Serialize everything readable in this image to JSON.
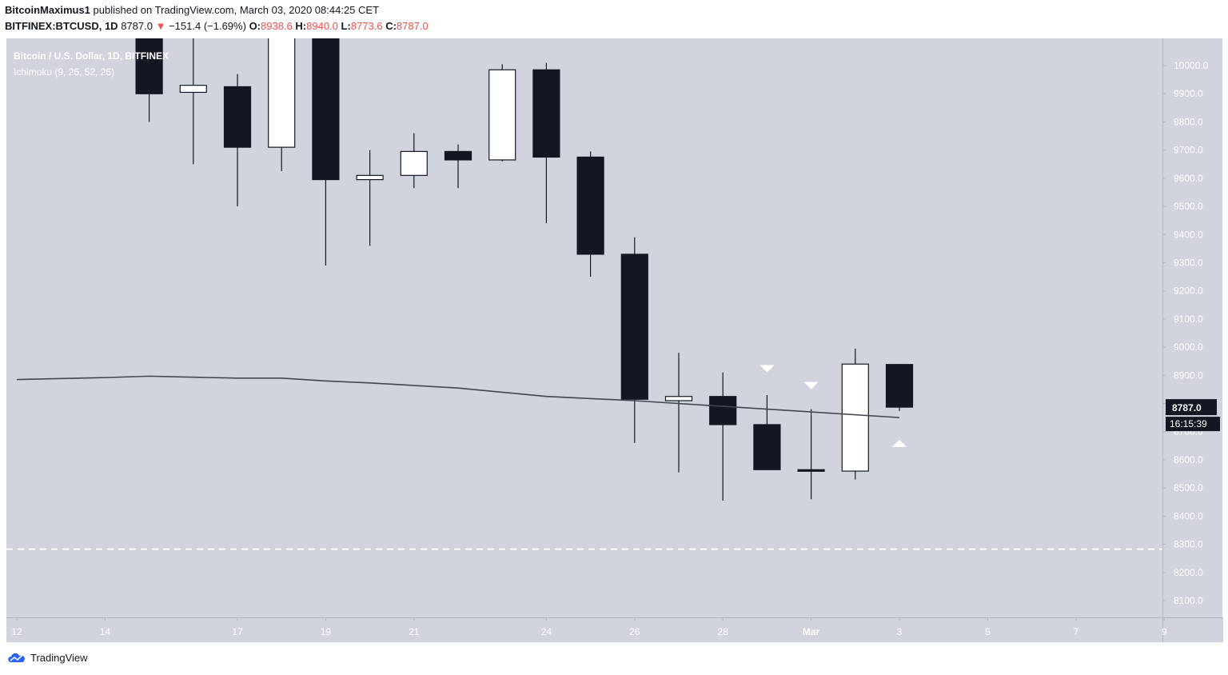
{
  "header": {
    "author": "BitcoinMaximus1",
    "published_text": " published on TradingView.com, March 03, 2020 08:44:25 CET",
    "symbol": "BITFINEX:BTCUSD, 1D",
    "last": "8787.0",
    "arrow": "▼",
    "change": "−151.4 (−1.69%)",
    "o_label": "O:",
    "o_value": "8938.6",
    "h_label": "H:",
    "h_value": "8940.0",
    "l_label": "L:",
    "l_value": "8773.6",
    "c_label": "C:",
    "c_value": "8787.0"
  },
  "legend": {
    "main_series": "Bitcoin / U.S. Dollar, 1D, BITFINEX",
    "indicator": "Ichimoku (9, 26, 52, 26)"
  },
  "footer": {
    "brand": "TradingView"
  },
  "colors": {
    "background": "#d1d4dc",
    "bull_body": "#ffffff",
    "bear_body": "#131722",
    "indicator_line": "#434651",
    "dashed_line": "#ffffff",
    "markers": "#ffffff"
  },
  "chart_data": {
    "type": "candlestick",
    "title": "Bitcoin / U.S. Dollar, 1D, BITFINEX",
    "x_ticks": [
      "12",
      "14",
      "17",
      "19",
      "21",
      "24",
      "26",
      "28",
      "Mar",
      "3",
      "5",
      "7",
      "9"
    ],
    "y_ticks": [
      8100,
      8200,
      8300,
      8400,
      8500,
      8600,
      8700,
      8800,
      8900,
      9000,
      9100,
      9200,
      9300,
      9400,
      9500,
      9600,
      9700,
      9800,
      9900,
      10000
    ],
    "y_tick_labels": [
      "8100.0",
      "8200.0",
      "8300.0",
      "8400.0",
      "8500.0",
      "8600.0",
      "8700.0",
      "8800.0",
      "8900.0",
      "9000.0",
      "9100.0",
      "9200.0",
      "9300.0",
      "9400.0",
      "9500.0",
      "9600.0",
      "9700.0",
      "9800.0",
      "9900.0",
      "10000.0"
    ],
    "ylim": [
      8000,
      10020
    ],
    "candles": [
      {
        "date": "Feb 15",
        "open": 10300,
        "high": 10380,
        "low": 9800,
        "close": 9900
      },
      {
        "date": "Feb 16",
        "open": 9905,
        "high": 10100,
        "low": 9650,
        "close": 9930
      },
      {
        "date": "Feb 17",
        "open": 9925,
        "high": 9970,
        "low": 9500,
        "close": 9710
      },
      {
        "date": "Feb 18",
        "open": 9710,
        "high": 10200,
        "low": 9625,
        "close": 10190
      },
      {
        "date": "Feb 19",
        "open": 10190,
        "high": 10260,
        "low": 9290,
        "close": 9595
      },
      {
        "date": "Feb 20",
        "open": 9595,
        "high": 9700,
        "low": 9360,
        "close": 9610
      },
      {
        "date": "Feb 21",
        "open": 9610,
        "high": 9760,
        "low": 9565,
        "close": 9695
      },
      {
        "date": "Feb 22",
        "open": 9695,
        "high": 9720,
        "low": 9565,
        "close": 9665
      },
      {
        "date": "Feb 23",
        "open": 9665,
        "high": 10005,
        "low": 9660,
        "close": 9985
      },
      {
        "date": "Feb 24",
        "open": 9985,
        "high": 10010,
        "low": 9440,
        "close": 9675
      },
      {
        "date": "Feb 25",
        "open": 9675,
        "high": 9695,
        "low": 9250,
        "close": 9330
      },
      {
        "date": "Feb 26",
        "open": 9330,
        "high": 9390,
        "low": 8660,
        "close": 8815
      },
      {
        "date": "Feb 27",
        "open": 8810,
        "high": 8980,
        "low": 8555,
        "close": 8825
      },
      {
        "date": "Feb 28",
        "open": 8825,
        "high": 8910,
        "low": 8455,
        "close": 8725
      },
      {
        "date": "Feb 29",
        "open": 8725,
        "high": 8830,
        "low": 8565,
        "close": 8565
      },
      {
        "date": "Mar 1",
        "open": 8565,
        "high": 8780,
        "low": 8460,
        "close": 8560
      },
      {
        "date": "Mar 2",
        "open": 8560,
        "high": 8995,
        "low": 8530,
        "close": 8940
      },
      {
        "date": "Mar 3",
        "open": 8938.6,
        "high": 8940.0,
        "low": 8773.6,
        "close": 8787.0
      }
    ],
    "indicator_line": [
      {
        "date": "Feb 12",
        "value": 8885
      },
      {
        "date": "Feb 14",
        "value": 8892
      },
      {
        "date": "Feb 15",
        "value": 8897
      },
      {
        "date": "Feb 17",
        "value": 8890
      },
      {
        "date": "Feb 18",
        "value": 8890
      },
      {
        "date": "Feb 19",
        "value": 8880
      },
      {
        "date": "Feb 20",
        "value": 8873
      },
      {
        "date": "Feb 22",
        "value": 8855
      },
      {
        "date": "Feb 24",
        "value": 8825
      },
      {
        "date": "Feb 26",
        "value": 8810
      },
      {
        "date": "Feb 28",
        "value": 8790
      },
      {
        "date": "Mar 1",
        "value": 8770
      },
      {
        "date": "Mar 3",
        "value": 8750
      }
    ],
    "horizontal_line": {
      "value": 8283,
      "style": "dashed"
    },
    "markers": [
      {
        "date": "Feb 29",
        "value": 8925,
        "direction": "down"
      },
      {
        "date": "Mar 1",
        "value": 8865,
        "direction": "down"
      },
      {
        "date": "Mar 3",
        "value": 8660,
        "direction": "up"
      }
    ],
    "last_price_label": "8787.0",
    "countdown_label": "16:15:39",
    "grid": false
  }
}
